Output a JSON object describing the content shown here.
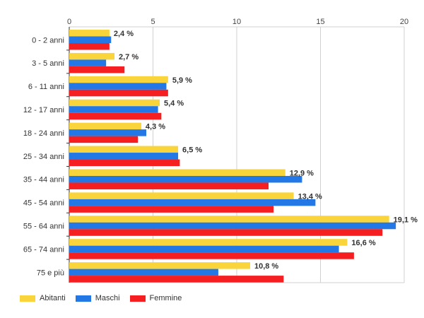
{
  "chart_data": {
    "type": "bar",
    "orientation": "horizontal",
    "title": "",
    "xlabel": "",
    "ylabel": "",
    "xlim": [
      0,
      20
    ],
    "x_ticks": [
      0,
      5,
      10,
      15,
      20
    ],
    "grid": true,
    "legend_position": "bottom-left",
    "categories": [
      "0 - 2 anni",
      "3 - 5 anni",
      "6 - 11 anni",
      "12 - 17 anni",
      "18 - 24 anni",
      "25 - 34 anni",
      "35 - 44 anni",
      "45 - 54 anni",
      "55 - 64 anni",
      "65 - 74 anni",
      "75 e più"
    ],
    "series": [
      {
        "name": "Abitanti",
        "color": "#f9d43a",
        "values": [
          2.4,
          2.7,
          5.9,
          5.4,
          4.3,
          6.5,
          12.9,
          13.4,
          19.1,
          16.6,
          10.8
        ]
      },
      {
        "name": "Maschi",
        "color": "#2378e6",
        "values": [
          2.5,
          2.2,
          5.8,
          5.3,
          4.6,
          6.5,
          13.9,
          14.7,
          19.5,
          16.1,
          8.9
        ]
      },
      {
        "name": "Femmine",
        "color": "#f51f21",
        "values": [
          2.4,
          3.3,
          5.9,
          5.5,
          4.1,
          6.6,
          11.9,
          12.2,
          18.7,
          17.0,
          12.8
        ]
      }
    ],
    "data_labels": [
      "2,4 %",
      "2,7 %",
      "5,9 %",
      "5,4 %",
      "4,3 %",
      "6,5 %",
      "12,9 %",
      "13,4 %",
      "19,1 %",
      "16,6 %",
      "10,8 %"
    ]
  }
}
